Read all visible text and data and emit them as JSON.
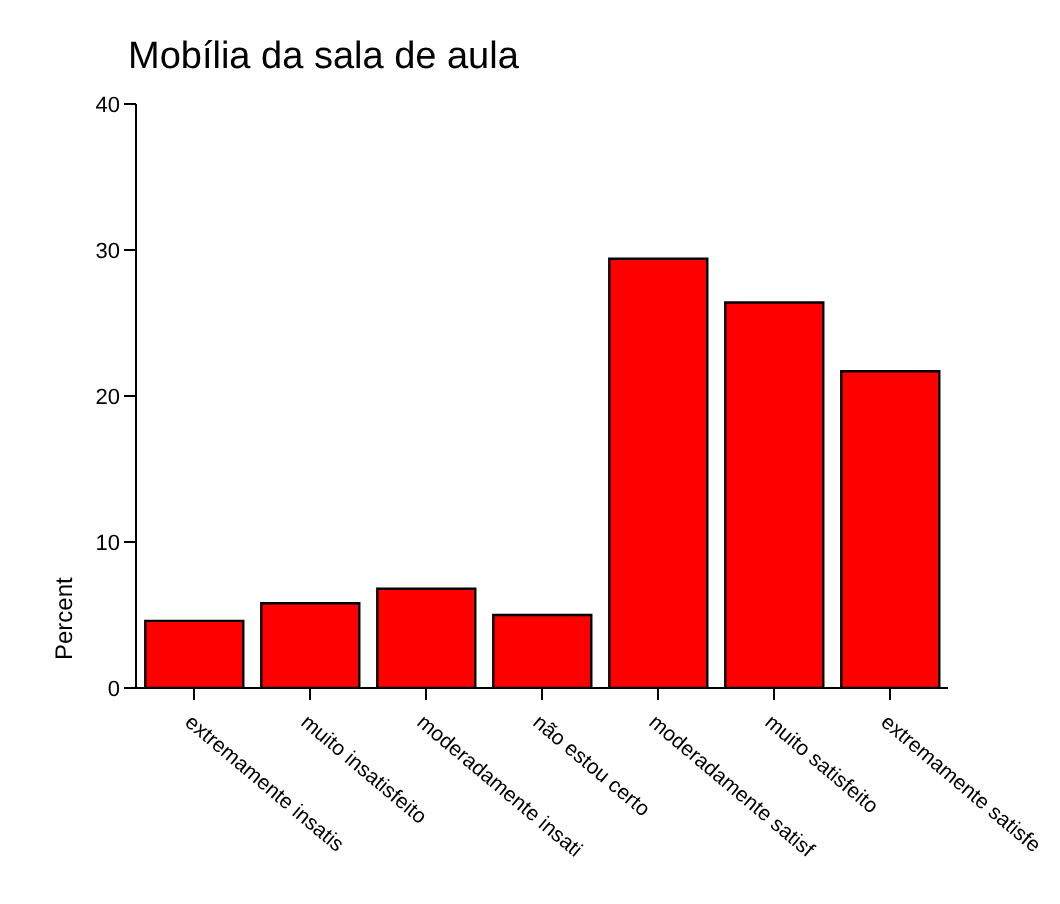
{
  "chart_data": {
    "type": "bar",
    "title": "Mobília da sala de aula",
    "ylabel": "Percent",
    "categories": [
      "extremamente insatis",
      "muito insatisfeito",
      "moderadamente insati",
      "não estou certo",
      "moderadamente satisf",
      "muito satisfeito",
      "extremamente satisfe"
    ],
    "values": [
      4.6,
      5.8,
      6.8,
      5.0,
      29.4,
      26.4,
      21.7
    ],
    "color": "#ff0000",
    "ylim": [
      0,
      40
    ],
    "yticks": [
      0,
      10,
      20,
      30,
      40
    ],
    "grid": false
  }
}
